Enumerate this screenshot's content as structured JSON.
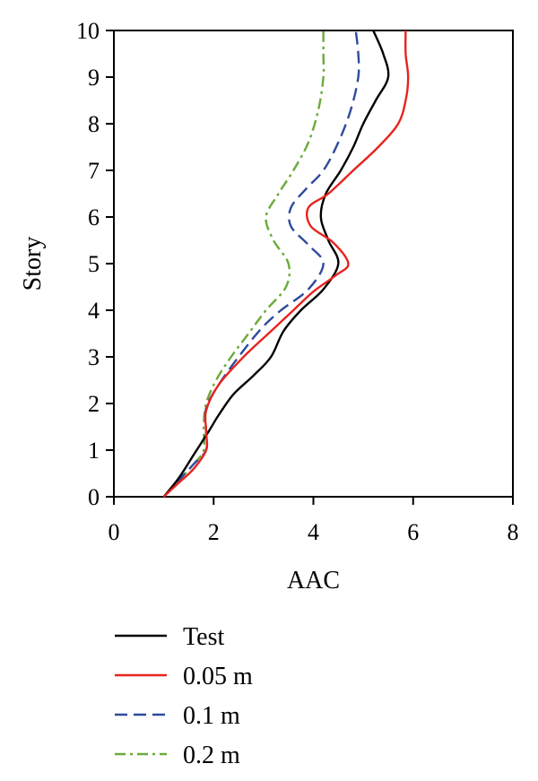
{
  "chart_data": {
    "type": "line",
    "xlabel": "AAC",
    "ylabel": "Story",
    "xlim": [
      0,
      8
    ],
    "ylim": [
      0,
      10
    ],
    "xticks": [
      0,
      2,
      4,
      6,
      8
    ],
    "yticks": [
      0,
      1,
      2,
      3,
      4,
      5,
      6,
      7,
      8,
      9,
      10
    ],
    "grid": false,
    "legend_position": "bottom",
    "series": [
      {
        "name": "Test",
        "color": "#000000",
        "dash": "solid",
        "points": [
          [
            1.0,
            0.0
          ],
          [
            1.3,
            0.4
          ],
          [
            1.6,
            0.9
          ],
          [
            1.9,
            1.4
          ],
          [
            2.1,
            1.75
          ],
          [
            2.4,
            2.2
          ],
          [
            2.8,
            2.6
          ],
          [
            3.15,
            3.0
          ],
          [
            3.4,
            3.55
          ],
          [
            3.75,
            4.0
          ],
          [
            4.2,
            4.45
          ],
          [
            4.5,
            5.0
          ],
          [
            4.3,
            5.5
          ],
          [
            4.15,
            6.0
          ],
          [
            4.25,
            6.5
          ],
          [
            4.55,
            7.0
          ],
          [
            4.8,
            7.5
          ],
          [
            5.0,
            8.0
          ],
          [
            5.25,
            8.5
          ],
          [
            5.5,
            9.0
          ],
          [
            5.4,
            9.5
          ],
          [
            5.2,
            10.0
          ]
        ]
      },
      {
        "name": "0.05 m",
        "color": "#e8231e",
        "dash": "solid",
        "points": [
          [
            1.0,
            0.0
          ],
          [
            1.3,
            0.3
          ],
          [
            1.6,
            0.6
          ],
          [
            1.85,
            1.0
          ],
          [
            1.85,
            1.4
          ],
          [
            1.85,
            1.85
          ],
          [
            2.1,
            2.4
          ],
          [
            2.6,
            3.0
          ],
          [
            3.2,
            3.6
          ],
          [
            3.6,
            4.0
          ],
          [
            4.0,
            4.4
          ],
          [
            4.45,
            4.75
          ],
          [
            4.7,
            5.0
          ],
          [
            4.4,
            5.45
          ],
          [
            3.95,
            5.8
          ],
          [
            3.9,
            6.2
          ],
          [
            4.3,
            6.5
          ],
          [
            4.8,
            7.0
          ],
          [
            5.3,
            7.5
          ],
          [
            5.7,
            8.0
          ],
          [
            5.85,
            8.5
          ],
          [
            5.9,
            9.0
          ],
          [
            5.85,
            9.5
          ],
          [
            5.85,
            10.0
          ]
        ]
      },
      {
        "name": "0.1 m",
        "color": "#2f4a9e",
        "dash": "dashed",
        "points": [
          [
            1.0,
            0.0
          ],
          [
            1.3,
            0.35
          ],
          [
            1.6,
            0.7
          ],
          [
            1.85,
            1.0
          ],
          [
            1.85,
            1.4
          ],
          [
            1.85,
            1.9
          ],
          [
            2.1,
            2.4
          ],
          [
            2.5,
            3.0
          ],
          [
            2.95,
            3.6
          ],
          [
            3.35,
            4.0
          ],
          [
            3.9,
            4.45
          ],
          [
            4.2,
            5.0
          ],
          [
            3.9,
            5.4
          ],
          [
            3.55,
            5.8
          ],
          [
            3.55,
            6.2
          ],
          [
            3.85,
            6.6
          ],
          [
            4.2,
            7.0
          ],
          [
            4.5,
            7.6
          ],
          [
            4.75,
            8.3
          ],
          [
            4.9,
            9.0
          ],
          [
            4.9,
            9.5
          ],
          [
            4.85,
            10.0
          ]
        ]
      },
      {
        "name": "0.2 m",
        "color": "#6aaa3a",
        "dash": "dashdot",
        "points": [
          [
            1.0,
            0.0
          ],
          [
            1.3,
            0.35
          ],
          [
            1.6,
            0.7
          ],
          [
            1.8,
            1.0
          ],
          [
            1.8,
            1.5
          ],
          [
            1.85,
            2.0
          ],
          [
            2.05,
            2.5
          ],
          [
            2.35,
            3.0
          ],
          [
            2.7,
            3.5
          ],
          [
            3.05,
            4.0
          ],
          [
            3.45,
            4.5
          ],
          [
            3.5,
            5.0
          ],
          [
            3.2,
            5.5
          ],
          [
            3.05,
            6.0
          ],
          [
            3.3,
            6.5
          ],
          [
            3.6,
            7.0
          ],
          [
            3.9,
            7.6
          ],
          [
            4.1,
            8.3
          ],
          [
            4.2,
            9.0
          ],
          [
            4.2,
            9.5
          ],
          [
            4.2,
            10.0
          ]
        ]
      }
    ]
  }
}
